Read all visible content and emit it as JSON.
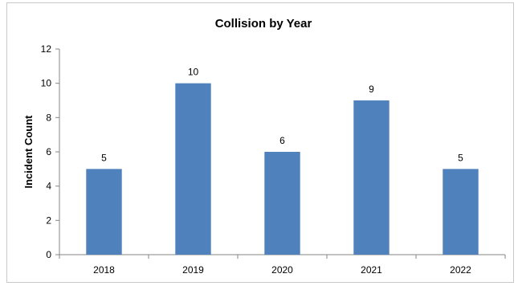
{
  "chart_data": {
    "type": "bar",
    "title": "Collision by Year",
    "xlabel": "",
    "ylabel": "Incident Count",
    "categories": [
      "2018",
      "2019",
      "2020",
      "2021",
      "2022"
    ],
    "values": [
      5,
      10,
      6,
      9,
      5
    ],
    "ylim": [
      0,
      12
    ],
    "yticks": [
      "0",
      "2",
      "4",
      "6",
      "8",
      "10",
      "12"
    ],
    "grid": false,
    "legend": "none",
    "bar_color": "#4f81bd"
  }
}
